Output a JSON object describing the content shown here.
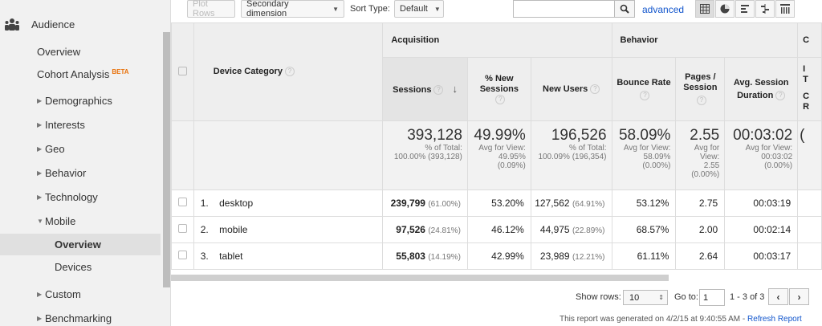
{
  "sidebar": {
    "section_title": "Audience",
    "section_icon": "audience-icon",
    "items": [
      {
        "label": "Overview"
      },
      {
        "label": "Cohort Analysis",
        "badge": "BETA"
      },
      {
        "label": "Demographics"
      },
      {
        "label": "Interests"
      },
      {
        "label": "Geo"
      },
      {
        "label": "Behavior"
      },
      {
        "label": "Technology"
      },
      {
        "label": "Mobile"
      },
      {
        "label": "Overview"
      },
      {
        "label": "Devices"
      },
      {
        "label": "Custom"
      },
      {
        "label": "Benchmarking"
      }
    ]
  },
  "toolbar": {
    "plot_rows": "Plot Rows",
    "secondary_dimension": "Secondary dimension",
    "sort_type_label": "Sort Type:",
    "sort_type_value": "Default",
    "search_placeholder": "",
    "advanced": "advanced"
  },
  "table": {
    "dimension_header": "Device Category",
    "groups": {
      "acquisition": "Acquisition",
      "behavior": "Behavior",
      "conversions_partial": "C"
    },
    "headers": {
      "sessions": "Sessions",
      "pct_new_sessions_1": "% New",
      "pct_new_sessions_2": "Sessions",
      "new_users": "New Users",
      "bounce_rate": "Bounce Rate",
      "pages_session_1": "Pages /",
      "pages_session_2": "Session",
      "avg_session_1": "Avg. Session",
      "avg_session_2": "Duration",
      "cut_1": "I",
      "cut_2": "T",
      "cut_3": "C",
      "cut_4": "R"
    },
    "totals": {
      "sessions": "393,128",
      "sessions_sub1": "% of Total:",
      "sessions_sub2": "100.00% (393,128)",
      "pct_new": "49.99%",
      "pct_new_sub1": "Avg for View:",
      "pct_new_sub2": "49.95%",
      "pct_new_sub3": "(0.09%)",
      "new_users": "196,526",
      "new_users_sub1": "% of Total:",
      "new_users_sub2": "100.09% (196,354)",
      "bounce": "58.09%",
      "bounce_sub1": "Avg for View:",
      "bounce_sub2": "58.09%",
      "bounce_sub3": "(0.00%)",
      "pages": "2.55",
      "pages_sub1": "Avg for",
      "pages_sub2": "View:",
      "pages_sub3": "2.55",
      "pages_sub4": "(0.00%)",
      "duration": "00:03:02",
      "duration_sub1": "Avg for View:",
      "duration_sub2": "00:03:02",
      "duration_sub3": "(0.00%)",
      "cut": "("
    },
    "rows": [
      {
        "index": "1.",
        "device": "desktop",
        "sessions": "239,799",
        "sessions_pct": "(61.00%)",
        "pct_new": "53.20%",
        "new_users": "127,562",
        "new_users_pct": "(64.91%)",
        "bounce": "53.12%",
        "pages": "2.75",
        "duration": "00:03:19"
      },
      {
        "index": "2.",
        "device": "mobile",
        "sessions": "97,526",
        "sessions_pct": "(24.81%)",
        "pct_new": "46.12%",
        "new_users": "44,975",
        "new_users_pct": "(22.89%)",
        "bounce": "68.57%",
        "pages": "2.00",
        "duration": "00:02:14"
      },
      {
        "index": "3.",
        "device": "tablet",
        "sessions": "55,803",
        "sessions_pct": "(14.19%)",
        "pct_new": "42.99%",
        "new_users": "23,989",
        "new_users_pct": "(12.21%)",
        "bounce": "61.11%",
        "pages": "2.64",
        "duration": "00:03:17"
      }
    ]
  },
  "footer": {
    "show_rows_label": "Show rows:",
    "show_rows_value": "10",
    "goto_label": "Go to:",
    "goto_value": "1",
    "range": "1 - 3 of 3",
    "prev": "‹",
    "next": "›",
    "generated": "This report was generated on 4/2/15 at 9:40:55 AM - ",
    "refresh": "Refresh Report"
  }
}
